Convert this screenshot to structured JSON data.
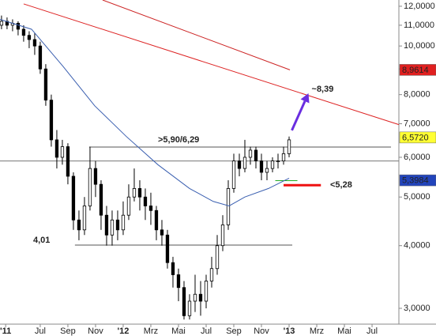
{
  "chart_data": {
    "type": "candlestick",
    "log_scale": true,
    "xlim": [
      -8.91,
      19.94
    ],
    "ylim": [
      2.79,
      12.35
    ],
    "yticks": [
      {
        "value": 3,
        "label": "3,0000"
      },
      {
        "value": 4,
        "label": "4,0000"
      },
      {
        "value": 5,
        "label": "5,0000"
      },
      {
        "value": 6,
        "label": "6,0000"
      },
      {
        "value": 7,
        "label": "7,0000"
      },
      {
        "value": 8,
        "label": "8,0000"
      },
      {
        "value": 9,
        "label": "9,0000"
      },
      {
        "value": 10,
        "label": "10,0000"
      },
      {
        "value": 11,
        "label": "11,0000"
      },
      {
        "value": 12,
        "label": "12,0000"
      }
    ],
    "xticks": [
      {
        "value": -8.5,
        "label": "'11"
      },
      {
        "value": -6,
        "label": "Jul"
      },
      {
        "value": -4,
        "label": "Sep"
      },
      {
        "value": -2,
        "label": "Nov"
      },
      {
        "value": 0,
        "label": "'12"
      },
      {
        "value": 2,
        "label": "Mrz"
      },
      {
        "value": 4,
        "label": "Mai"
      },
      {
        "value": 6,
        "label": "Jul"
      },
      {
        "value": 8,
        "label": "Sep"
      },
      {
        "value": 10,
        "label": "Nov"
      },
      {
        "value": 12,
        "label": "'13"
      },
      {
        "value": 14,
        "label": "Mrz"
      },
      {
        "value": 16,
        "label": "Mai"
      },
      {
        "value": 18,
        "label": "Jul"
      }
    ],
    "x": [
      -8.8,
      -8.4,
      -8.0,
      -7.6,
      -7.2,
      -6.8,
      -6.4,
      -6.0,
      -5.6,
      -5.2,
      -4.8,
      -4.4,
      -4.0,
      -3.6,
      -3.2,
      -2.8,
      -2.4,
      -2.0,
      -1.6,
      -1.2,
      -0.8,
      -0.4,
      0.0,
      0.4,
      0.8,
      1.2,
      1.6,
      2.0,
      2.4,
      2.8,
      3.2,
      3.6,
      4.0,
      4.4,
      4.8,
      5.2,
      5.6,
      6.0,
      6.4,
      6.8,
      7.2,
      7.6,
      8.0,
      8.4,
      8.8,
      9.2,
      9.6,
      10.0,
      10.4,
      10.8,
      11.2,
      11.6,
      12.0
    ],
    "open": [
      11.0,
      11.2,
      11.0,
      11.1,
      10.8,
      10.5,
      10.3,
      10.0,
      9.0,
      7.8,
      6.5,
      6.0,
      6.3,
      5.5,
      4.5,
      4.3,
      4.8,
      5.7,
      5.3,
      4.6,
      4.2,
      4.5,
      4.3,
      4.6,
      5.0,
      5.2,
      5.0,
      4.8,
      4.7,
      4.3,
      4.2,
      3.7,
      3.5,
      3.3,
      2.9,
      3.1,
      3.2,
      3.1,
      3.4,
      3.6,
      4.0,
      4.4,
      5.2,
      5.9,
      5.7,
      6.0,
      6.2,
      5.9,
      5.6,
      5.7,
      5.9,
      5.9,
      6.1
    ],
    "high": [
      11.5,
      11.4,
      11.3,
      11.2,
      11.0,
      10.7,
      10.6,
      10.2,
      9.2,
      8.0,
      6.8,
      6.5,
      6.4,
      5.6,
      4.7,
      5.0,
      6.3,
      5.9,
      5.4,
      4.8,
      4.7,
      4.7,
      4.9,
      5.3,
      5.7,
      5.4,
      5.2,
      5.1,
      4.8,
      4.5,
      4.3,
      3.8,
      3.6,
      3.4,
      3.2,
      3.5,
      3.4,
      3.5,
      3.8,
      4.2,
      4.6,
      5.4,
      6.1,
      6.1,
      6.5,
      6.3,
      6.3,
      6.1,
      5.9,
      6.0,
      6.1,
      6.3,
      6.6
    ],
    "low": [
      10.8,
      10.8,
      10.7,
      10.5,
      10.2,
      9.9,
      9.6,
      8.8,
      7.6,
      6.3,
      5.7,
      5.8,
      5.3,
      4.3,
      4.1,
      4.2,
      4.7,
      5.0,
      4.3,
      4.0,
      4.0,
      4.1,
      4.2,
      4.5,
      4.9,
      4.7,
      4.5,
      4.4,
      4.1,
      4.0,
      3.6,
      3.3,
      3.1,
      2.85,
      2.85,
      2.95,
      2.9,
      3.0,
      3.3,
      3.5,
      3.9,
      4.3,
      5.1,
      5.5,
      5.6,
      5.8,
      5.7,
      5.4,
      5.4,
      5.6,
      5.7,
      5.8,
      6.0
    ],
    "close": [
      11.2,
      11.0,
      11.1,
      10.8,
      10.5,
      10.3,
      10.0,
      9.0,
      7.8,
      6.5,
      6.0,
      6.3,
      5.5,
      4.5,
      4.3,
      4.8,
      5.7,
      5.3,
      4.6,
      4.2,
      4.5,
      4.3,
      4.6,
      5.0,
      5.2,
      5.0,
      4.8,
      4.7,
      4.3,
      4.2,
      3.7,
      3.5,
      3.3,
      2.9,
      3.1,
      3.2,
      3.1,
      3.4,
      3.6,
      4.0,
      4.4,
      5.2,
      5.9,
      5.7,
      6.0,
      6.2,
      5.9,
      5.6,
      5.7,
      5.9,
      5.9,
      6.1,
      6.5
    ],
    "moving_average": {
      "color": "#3a5fb0",
      "x": [
        -8.91,
        -6.63,
        -4.34,
        -2.06,
        0.23,
        2.51,
        4.8,
        6.51,
        7.66,
        8.8,
        10.51,
        12.0
      ],
      "values": [
        11.3,
        10.8,
        9.1,
        7.6,
        6.6,
        5.8,
        5.2,
        4.9,
        4.8,
        5.0,
        5.2,
        5.45
      ]
    },
    "trend_lines": [
      {
        "color": "#cc2222",
        "x": [
          -1.49,
          12.06
        ],
        "values": [
          12.35,
          8.9614
        ]
      },
      {
        "color": "#dd2222",
        "x": [
          -7.2,
          19.94
        ],
        "values": [
          12.13,
          6.97
        ]
      }
    ],
    "levels": [
      {
        "value": 6.29,
        "x": [
          -2.46,
          19.37
        ],
        "color": "#555555",
        "label": ">5,90/6,29",
        "label_color": "#3a6fd0"
      },
      {
        "value": 5.9,
        "x": [
          -8.91,
          19.94
        ],
        "color": "#777777"
      },
      {
        "value": 4.01,
        "x": [
          -3.49,
          12.23
        ],
        "color": "#555555",
        "label": "4,01",
        "label_color": "#555555"
      },
      {
        "value": 5.39,
        "x": [
          11.0,
          12.6
        ],
        "color": "#22aa22"
      },
      {
        "value": 5.28,
        "x": [
          11.6,
          14.3
        ],
        "color": "#ee1111",
        "label": "<5,28",
        "label_color": "#ee1111"
      }
    ],
    "arrow": {
      "x": [
        12.2,
        13.4
      ],
      "values": [
        6.79,
        8.05
      ],
      "color": "#6a2ee0",
      "label": "~8,39",
      "label_color": "#999999"
    },
    "price_markers": [
      {
        "value": 8.9614,
        "label": "8,9614",
        "color": "#e02020",
        "text_color": "#222222"
      },
      {
        "value": 6.572,
        "label": "6,5720",
        "color": "#ffff33",
        "text_color": "#222222"
      },
      {
        "value": 5.3984,
        "label": "5,3984",
        "color": "#2244bb",
        "text_color": "#ffffff"
      }
    ]
  }
}
